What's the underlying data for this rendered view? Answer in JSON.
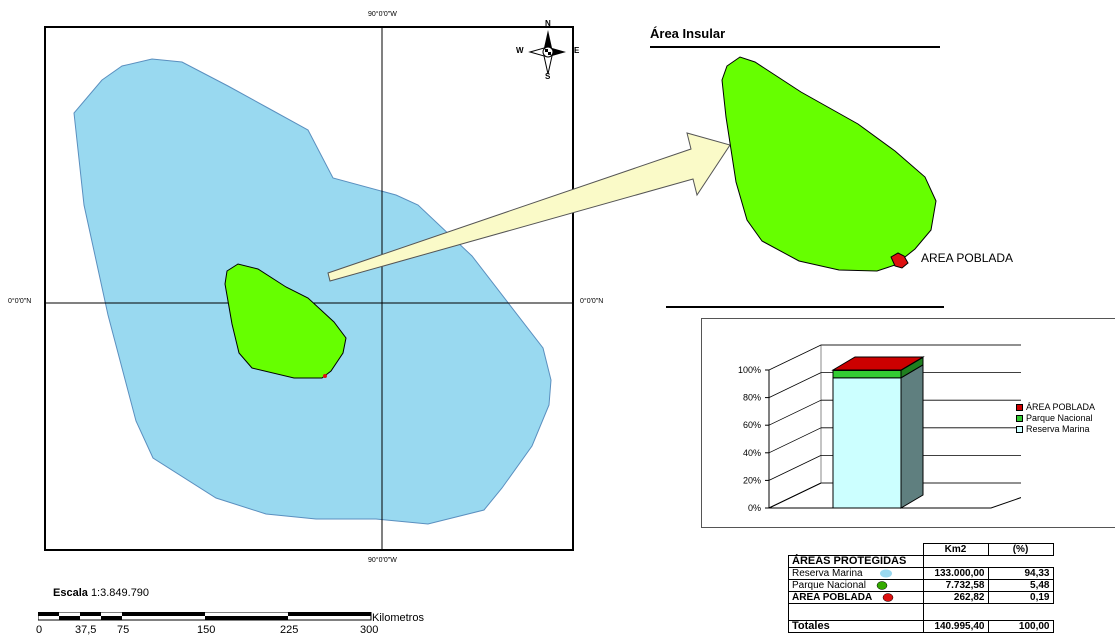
{
  "map": {
    "coord_top": "90°0'0\"W",
    "coord_bottom": "90°0'0\"W",
    "coord_left": "0°0'0\"N",
    "coord_right": "0°0'0\"N",
    "compass": {
      "n": "N",
      "s": "S",
      "e": "E",
      "w": "W"
    }
  },
  "inset": {
    "title": "Área Insular",
    "poblada_label": "AREA POBLADA"
  },
  "chart_data": {
    "type": "bar",
    "stacked": true,
    "percent": true,
    "three_d": true,
    "categories": [
      ""
    ],
    "series": [
      {
        "name": "Reserva Marina",
        "values": [
          94.33
        ],
        "color": "#ccffff"
      },
      {
        "name": "Parque Nacional",
        "values": [
          5.48
        ],
        "color": "#33cc33"
      },
      {
        "name": "ÁREA POBLADA",
        "values": [
          0.19
        ],
        "color": "#cc0000"
      }
    ],
    "yticks": [
      "0%",
      "20%",
      "40%",
      "60%",
      "80%",
      "100%"
    ],
    "ylim": [
      0,
      100
    ],
    "legend_order": [
      "ÁREA POBLADA",
      "Parque Nacional",
      "Reserva Marina"
    ],
    "legend_position": "right"
  },
  "scale": {
    "title": "Escala",
    "ratio": "1:3.849.790",
    "unit": "Kilometros",
    "ticks": [
      "0",
      "37,5",
      "75",
      "150",
      "225",
      "300"
    ]
  },
  "table": {
    "col_km2": "Km2",
    "col_pct": "(%)",
    "header": "ÁREAS PROTEGIDAS",
    "rows": [
      {
        "label": "Reserva Marina",
        "km2": "133.000,00",
        "pct": "94,33"
      },
      {
        "label": "Parque Nacional",
        "km2": "7.732,58",
        "pct": "5,48"
      },
      {
        "label": "ÁREA POBLADA",
        "km2": "262,82",
        "pct": "0,19"
      }
    ],
    "total_label": "Totales",
    "total_km2": "140.995,40",
    "total_pct": "100,00"
  },
  "colors": {
    "marine": "#99d9f0",
    "park": "#66ff00",
    "poblada": "#dd1111",
    "arrow": "#fafac8"
  }
}
